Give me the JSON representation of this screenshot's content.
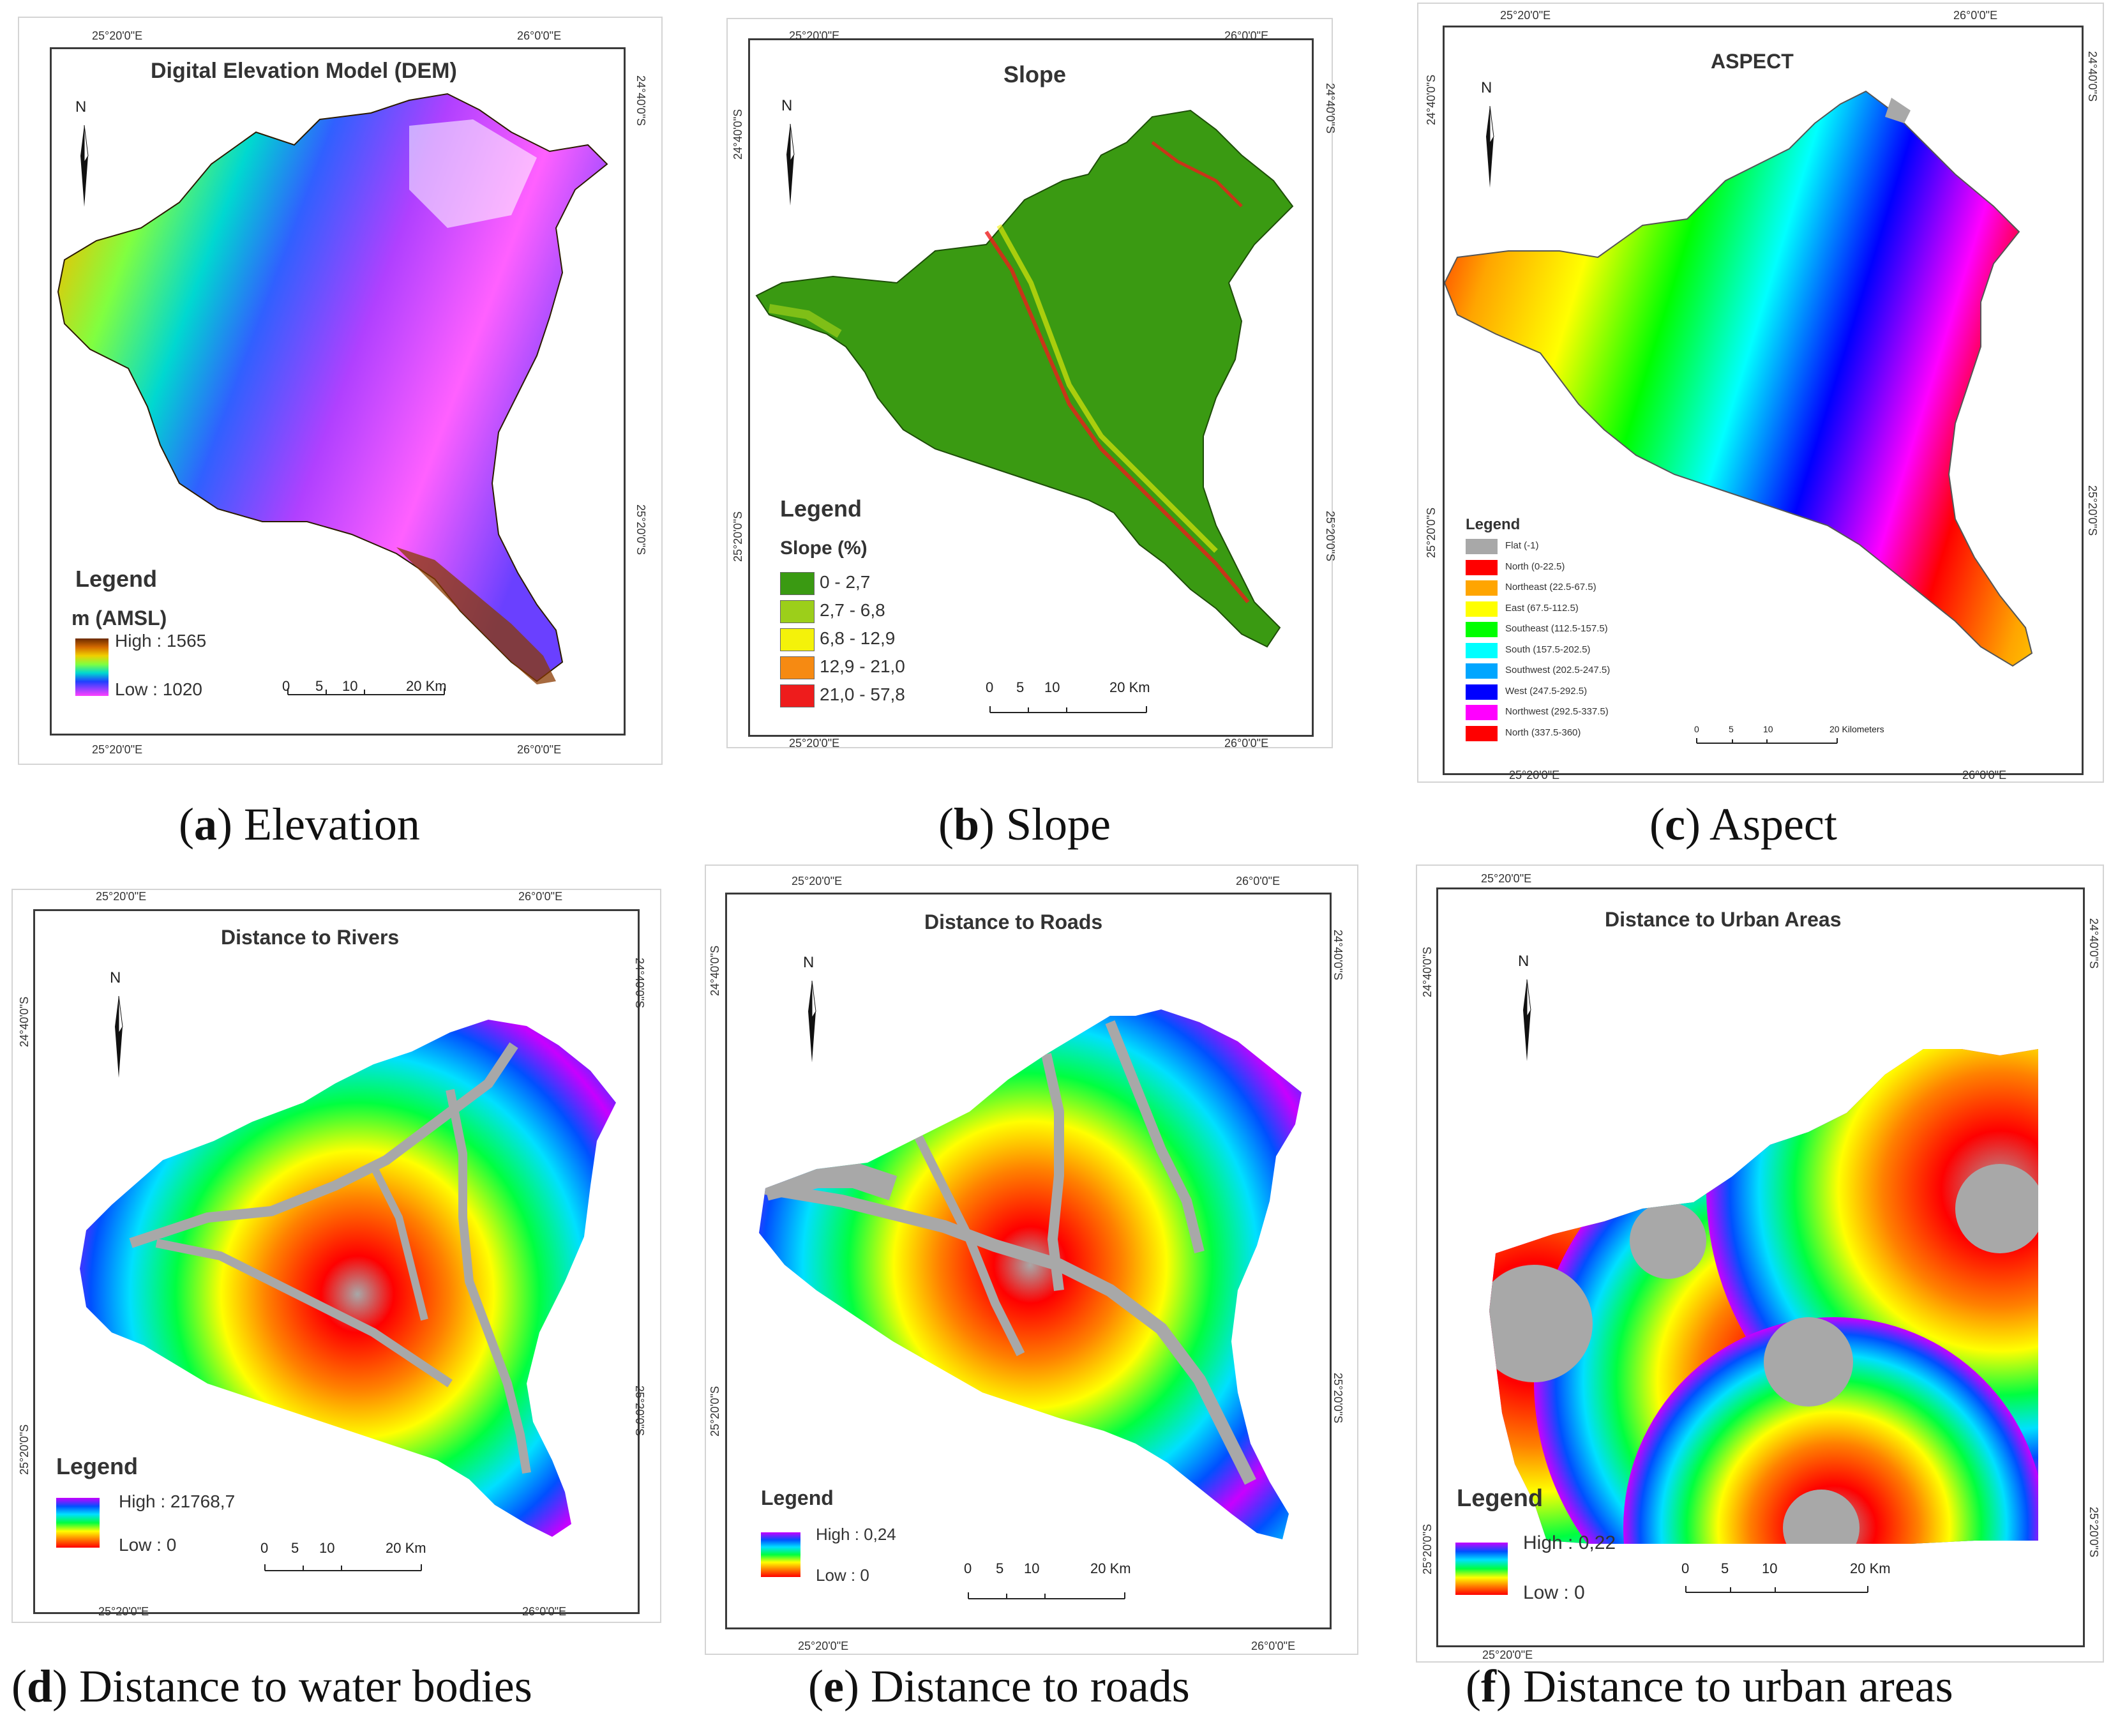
{
  "coords": {
    "lon_w": "25°20'0\"E",
    "lon_e": "26°0'0\"E",
    "lat_n": "24°40'0\"S",
    "lat_s": "25°20'0\"S"
  },
  "north_label": "N",
  "scale": {
    "labels": [
      "0",
      "5",
      "10",
      "20 Km"
    ],
    "labels_c": [
      "0",
      "5",
      "10",
      "20 Kilometers"
    ]
  },
  "legend_word": "Legend",
  "panels": {
    "a": {
      "title": "Digital Elevation Model (DEM)",
      "unit": "m (AMSL)",
      "high": "High : 1565",
      "low": "Low : 1020",
      "caption_letter": "a",
      "caption_text": ") Elevation"
    },
    "b": {
      "title": "Slope",
      "legend_sub": "Slope (%)",
      "classes": [
        {
          "label": "0 - 2,7",
          "color": "#3a9a12"
        },
        {
          "label": "2,7 - 6,8",
          "color": "#9ccf1a"
        },
        {
          "label": "6,8 - 12,9",
          "color": "#f4f20a"
        },
        {
          "label": "12,9 - 21,0",
          "color": "#f68a12"
        },
        {
          "label": "21,0 - 57,8",
          "color": "#ee1c1c"
        }
      ],
      "caption_letter": "b",
      "caption_text": ") Slope"
    },
    "c": {
      "title": "ASPECT",
      "classes": [
        {
          "label": "Flat (-1)",
          "color": "#a8a8a8"
        },
        {
          "label": "North (0-22.5)",
          "color": "#ff0000"
        },
        {
          "label": "Northeast (22.5-67.5)",
          "color": "#ffa500"
        },
        {
          "label": "East (67.5-112.5)",
          "color": "#ffff00"
        },
        {
          "label": "Southeast (112.5-157.5)",
          "color": "#00ff00"
        },
        {
          "label": "South (157.5-202.5)",
          "color": "#00ffff"
        },
        {
          "label": "Southwest (202.5-247.5)",
          "color": "#00a6ff"
        },
        {
          "label": "West (247.5-292.5)",
          "color": "#0000ff"
        },
        {
          "label": "Northwest (292.5-337.5)",
          "color": "#ff00ff"
        },
        {
          "label": "North (337.5-360)",
          "color": "#ff0000"
        }
      ],
      "caption_letter": "c",
      "caption_text": ") Aspect"
    },
    "d": {
      "title": "Distance to Rivers",
      "high": "High : 21768,7",
      "low": "Low : 0",
      "caption_letter": "d",
      "caption_text": ") Distance to water bodies"
    },
    "e": {
      "title": "Distance to Roads",
      "high": "High : 0,24",
      "low": "Low : 0",
      "caption_letter": "e",
      "caption_text": ") Distance to roads"
    },
    "f": {
      "title": "Distance to Urban Areas",
      "high": "High : 0,22",
      "low": "Low : 0",
      "caption_letter": "f",
      "caption_text": ") Distance to urban areas"
    }
  },
  "colors": {
    "rainbow_high_to_low": [
      "#c800ff",
      "#0050ff",
      "#00e0ff",
      "#00ff40",
      "#ffff00",
      "#ff8000",
      "#ff0000"
    ],
    "dem_high_to_low": [
      "#6a2a00",
      "#d46a00",
      "#f0d000",
      "#80ff40",
      "#00d8d0",
      "#2040ff",
      "#ff40ff",
      "#ffffff"
    ],
    "near_gray": "#a8a8a8"
  }
}
